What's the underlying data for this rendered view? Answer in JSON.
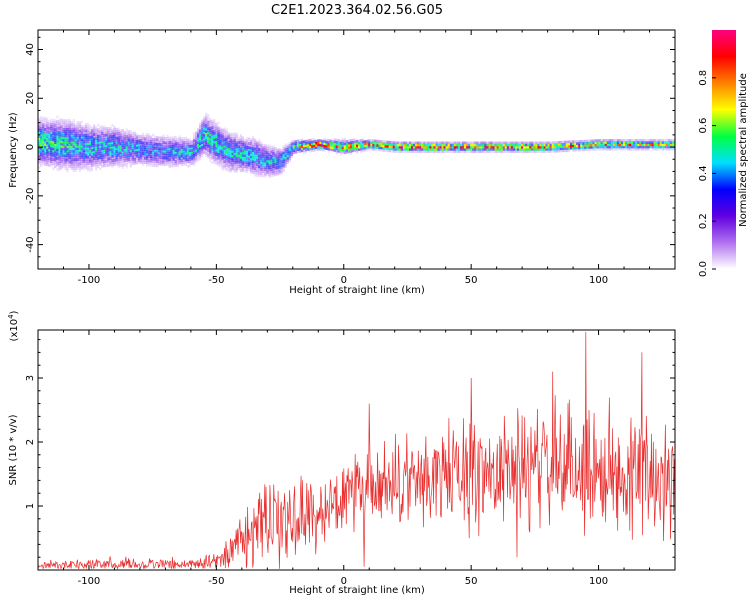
{
  "title": "C2E1.2023.364.02.56.G05",
  "chart_data": [
    {
      "type": "heatmap",
      "xlabel": "Height of straight line (km)",
      "ylabel": "Frequency (Hz)",
      "xlim": [
        -120,
        130
      ],
      "ylim": [
        -50,
        48
      ],
      "xticks": [
        -100,
        -50,
        0,
        50,
        100
      ],
      "yticks": [
        -40,
        -20,
        0,
        20,
        40
      ],
      "colorbar": {
        "label": "Normalized spectral amplitude",
        "range": [
          0.0,
          1.0
        ],
        "ticks": [
          "0.0",
          "0.2",
          "0.4",
          "0.6",
          "0.8"
        ],
        "colormap": [
          "#ffffff",
          "#b070f0",
          "#6000e0",
          "#0000ff",
          "#00e0ff",
          "#00ff40",
          "#ffff00",
          "#ff8000",
          "#ff0000",
          "#ff0080"
        ]
      },
      "ridge": {
        "description_free": true,
        "x": [
          -120,
          -110,
          -100,
          -90,
          -80,
          -70,
          -60,
          -55,
          -50,
          -45,
          -40,
          -35,
          -30,
          -25,
          -20,
          -10,
          0,
          10,
          20,
          40,
          60,
          80,
          100,
          120,
          130
        ],
        "center_freq": [
          2,
          1,
          0,
          0,
          -1,
          -2,
          -2,
          5,
          1,
          -2,
          -3,
          -4,
          -6,
          -6,
          0,
          1,
          0,
          1,
          0,
          0,
          0,
          0,
          1,
          1,
          1
        ],
        "spread_freq": [
          10,
          11,
          10,
          9,
          7,
          7,
          6,
          9,
          9,
          9,
          8,
          8,
          7,
          6,
          3,
          2,
          3,
          2,
          2,
          2,
          2,
          2,
          2,
          2,
          2
        ],
        "peak_amplitude": [
          0.55,
          0.5,
          0.45,
          0.45,
          0.4,
          0.4,
          0.45,
          0.5,
          0.5,
          0.45,
          0.45,
          0.45,
          0.45,
          0.4,
          0.6,
          0.9,
          0.75,
          0.8,
          0.85,
          0.85,
          0.85,
          0.8,
          0.75,
          0.7,
          0.7
        ]
      }
    },
    {
      "type": "line",
      "xlabel": "Height of straight line (km)",
      "ylabel": "SNR (10 * v/v)",
      "y_multiplier": "(x10",
      "y_multiplier_exp": "4",
      "xlim": [
        -120,
        130
      ],
      "ylim": [
        0,
        3.75
      ],
      "xticks": [
        -100,
        -50,
        0,
        50,
        100
      ],
      "yticks": [
        1,
        2,
        3
      ],
      "color": "#e83030",
      "envelope": {
        "x": [
          -120,
          -100,
          -80,
          -60,
          -50,
          -45,
          -40,
          -35,
          -30,
          -25,
          -20,
          -15,
          -10,
          -5,
          0,
          5,
          10,
          20,
          30,
          40,
          50,
          60,
          70,
          80,
          90,
          100,
          110,
          120,
          130
        ],
        "baseline": [
          0.08,
          0.09,
          0.1,
          0.1,
          0.15,
          0.3,
          0.45,
          0.6,
          0.7,
          0.75,
          0.8,
          0.85,
          0.9,
          0.95,
          1.1,
          1.15,
          1.2,
          1.3,
          1.4,
          1.5,
          1.5,
          1.55,
          1.6,
          1.6,
          1.6,
          1.55,
          1.5,
          1.5,
          1.5
        ],
        "noise": [
          0.05,
          0.08,
          0.08,
          0.08,
          0.12,
          0.25,
          0.35,
          0.45,
          0.5,
          0.55,
          0.55,
          0.55,
          0.45,
          0.45,
          0.45,
          0.5,
          0.55,
          0.6,
          0.65,
          0.7,
          0.75,
          0.75,
          0.75,
          0.8,
          0.85,
          0.85,
          0.8,
          0.8,
          0.8
        ]
      },
      "spikes": [
        {
          "x": 10,
          "y": 2.6
        },
        {
          "x": 95,
          "y": 3.72
        },
        {
          "x": 117,
          "y": 3.4
        },
        {
          "x": 82,
          "y": 3.1
        },
        {
          "x": 50,
          "y": 3.0
        },
        {
          "x": 8,
          "y": 0.05
        },
        {
          "x": 68,
          "y": 0.2
        }
      ]
    }
  ]
}
